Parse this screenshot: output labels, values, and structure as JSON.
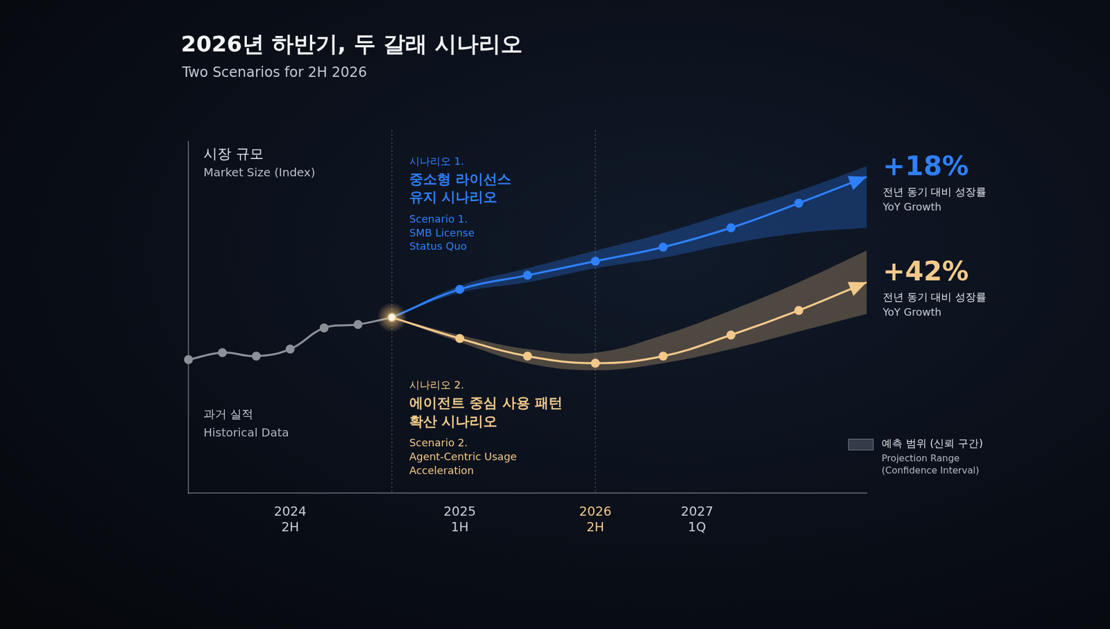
{
  "chart_data": {
    "type": "line",
    "title": "2026년 하반기, 두 갈래 시나리오",
    "subtitle": "Two Scenarios for 2H 2026",
    "y_label": "시장 규모",
    "y_label_en": "Market Size (Index)",
    "categories": [
      null,
      null,
      null,
      "2024 2H",
      null,
      null,
      null,
      null,
      "2025 1H",
      null,
      null,
      null,
      "2026 2H",
      null,
      null,
      "2027 1Q",
      null,
      null,
      null,
      null,
      null
    ],
    "ylim": [
      0,
      100
    ],
    "tick_labels": "x",
    "grid": false,
    "legend": "lower right",
    "projection_range": {
      "label": "예측 범위 (신뢰 구간)",
      "label_en": "Projection Range (Confidence Interval)"
    },
    "series": [
      {
        "name": "과거 실적",
        "name_en": "Historical Data",
        "color": "#8b9099",
        "marker": "circle",
        "line_style": "solid",
        "values": [
          38,
          40,
          39,
          41,
          47,
          48,
          50,
          null,
          null,
          null,
          null,
          null,
          null,
          null,
          null,
          null,
          null,
          null,
          null,
          null,
          null
        ]
      },
      {
        "label": "시나리오 1.",
        "name": "중소형 라이선스 유지 시나리오",
        "label_en": "Scenario 1.",
        "name_en": "SMB License Status Quo",
        "color": "#2f80ff",
        "marker": "circle",
        "line_style": "solid",
        "values": [
          null,
          null,
          null,
          null,
          null,
          null,
          50,
          null,
          58,
          null,
          62,
          null,
          66,
          null,
          70,
          null,
          75.5,
          null,
          82.5,
          null,
          90
        ],
        "lower": [
          null,
          null,
          null,
          null,
          null,
          null,
          50,
          null,
          57,
          null,
          60,
          null,
          64,
          null,
          67,
          null,
          71,
          null,
          74,
          null,
          75.5
        ],
        "upper": [
          null,
          null,
          null,
          null,
          null,
          null,
          50,
          null,
          59,
          null,
          64,
          null,
          69,
          null,
          74,
          null,
          80,
          null,
          86,
          null,
          93
        ],
        "growth": 18,
        "growth_label": "+18%",
        "growth_text": "전년 동기 대비 성장률",
        "growth_text_en": "YoY Growth"
      },
      {
        "label": "시나리오 2.",
        "name": "에이전트 중심 사용 패턴 확산 시나리오",
        "label_en": "Scenario 2.",
        "name_en": "Agent-Centric Usage Acceleration",
        "color": "#f3c98b",
        "marker": "circle",
        "line_style": "solid",
        "values": [
          null,
          null,
          null,
          null,
          null,
          null,
          50,
          null,
          44,
          null,
          39,
          null,
          37,
          null,
          39,
          null,
          45,
          null,
          52,
          null,
          60
        ],
        "lower": [
          null,
          null,
          null,
          null,
          null,
          null,
          50,
          null,
          43,
          null,
          37,
          null,
          35,
          null,
          37,
          null,
          41,
          null,
          46,
          null,
          51
        ],
        "upper": [
          null,
          null,
          null,
          null,
          null,
          null,
          50,
          null,
          45,
          null,
          41,
          null,
          40,
          null,
          45,
          null,
          52,
          null,
          60,
          null,
          69
        ],
        "growth": 42,
        "growth_label": "+42%",
        "growth_text": "전년 동기 대비 성장률",
        "growth_text_en": "YoY Growth"
      }
    ]
  }
}
